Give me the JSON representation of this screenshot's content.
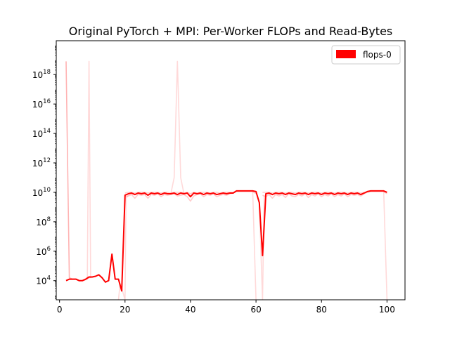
{
  "chart_data": {
    "type": "line",
    "title": "Original PyTorch + MPI: Per-Worker FLOPs and Read-Bytes",
    "xlabel": "",
    "ylabel": "",
    "xlim": [
      -1,
      105.5
    ],
    "ylim_log10": [
      2.7,
      20.3
    ],
    "yscale": "log",
    "x_ticks": [
      0,
      20,
      40,
      60,
      80,
      100
    ],
    "y_ticks": [
      {
        "base": "10",
        "exp": "4",
        "log10": 4
      },
      {
        "base": "10",
        "exp": "6",
        "log10": 6
      },
      {
        "base": "10",
        "exp": "8",
        "log10": 8
      },
      {
        "base": "10",
        "exp": "10",
        "log10": 10
      },
      {
        "base": "10",
        "exp": "12",
        "log10": 12
      },
      {
        "base": "10",
        "exp": "14",
        "log10": 14
      },
      {
        "base": "10",
        "exp": "16",
        "log10": 16
      },
      {
        "base": "10",
        "exp": "18",
        "log10": 18
      }
    ],
    "legend": {
      "placement": "top-right",
      "entries": [
        {
          "label": "flops-0",
          "color": "#ff0000"
        }
      ]
    },
    "grid": false,
    "line_color": "#ff0000",
    "series": [
      {
        "name": "flops-0",
        "opacity": 1.0,
        "points": [
          [
            2,
            4.0
          ],
          [
            3,
            4.1
          ],
          [
            4,
            4.1
          ],
          [
            5,
            4.1
          ],
          [
            6,
            4.0
          ],
          [
            7,
            4.0
          ],
          [
            8,
            4.1
          ],
          [
            9,
            4.25
          ],
          [
            10,
            4.25
          ],
          [
            11,
            4.3
          ],
          [
            12,
            4.4
          ],
          [
            13,
            4.2
          ],
          [
            14,
            3.9
          ],
          [
            15,
            4.0
          ],
          [
            16,
            5.8
          ],
          [
            17,
            4.1
          ],
          [
            18,
            4.1
          ],
          [
            19,
            3.3
          ],
          [
            20,
            9.8
          ],
          [
            21,
            9.9
          ],
          [
            22,
            9.95
          ],
          [
            23,
            9.85
          ],
          [
            24,
            9.95
          ],
          [
            25,
            9.9
          ],
          [
            26,
            9.95
          ],
          [
            27,
            9.8
          ],
          [
            28,
            9.95
          ],
          [
            29,
            9.9
          ],
          [
            30,
            9.95
          ],
          [
            31,
            9.85
          ],
          [
            32,
            9.95
          ],
          [
            33,
            9.9
          ],
          [
            34,
            9.9
          ],
          [
            35,
            9.95
          ],
          [
            36,
            9.85
          ],
          [
            37,
            9.95
          ],
          [
            38,
            9.9
          ],
          [
            39,
            9.95
          ],
          [
            40,
            9.7
          ],
          [
            41,
            9.95
          ],
          [
            42,
            9.9
          ],
          [
            43,
            9.95
          ],
          [
            44,
            9.85
          ],
          [
            45,
            9.95
          ],
          [
            46,
            9.9
          ],
          [
            47,
            9.95
          ],
          [
            48,
            9.85
          ],
          [
            49,
            9.9
          ],
          [
            50,
            9.95
          ],
          [
            51,
            9.9
          ],
          [
            52,
            9.95
          ],
          [
            53,
            9.95
          ],
          [
            54,
            10.1
          ],
          [
            55,
            10.1
          ],
          [
            56,
            10.1
          ],
          [
            57,
            10.1
          ],
          [
            58,
            10.1
          ],
          [
            59,
            10.1
          ],
          [
            60,
            10.05
          ],
          [
            61,
            9.3
          ],
          [
            62,
            5.7
          ],
          [
            63,
            9.9
          ],
          [
            64,
            9.95
          ],
          [
            65,
            9.85
          ],
          [
            66,
            9.95
          ],
          [
            67,
            9.9
          ],
          [
            68,
            9.95
          ],
          [
            69,
            9.85
          ],
          [
            70,
            9.95
          ],
          [
            71,
            9.9
          ],
          [
            72,
            9.85
          ],
          [
            73,
            9.95
          ],
          [
            74,
            9.9
          ],
          [
            75,
            9.95
          ],
          [
            76,
            9.85
          ],
          [
            77,
            9.95
          ],
          [
            78,
            9.9
          ],
          [
            79,
            9.95
          ],
          [
            80,
            9.85
          ],
          [
            81,
            9.95
          ],
          [
            82,
            9.9
          ],
          [
            83,
            9.95
          ],
          [
            84,
            9.85
          ],
          [
            85,
            9.95
          ],
          [
            86,
            9.9
          ],
          [
            87,
            9.95
          ],
          [
            88,
            9.85
          ],
          [
            89,
            9.95
          ],
          [
            90,
            9.9
          ],
          [
            91,
            9.95
          ],
          [
            92,
            9.85
          ],
          [
            93,
            9.95
          ],
          [
            94,
            10.05
          ],
          [
            95,
            10.1
          ],
          [
            96,
            10.1
          ],
          [
            97,
            10.1
          ],
          [
            98,
            10.1
          ],
          [
            99,
            10.1
          ],
          [
            100,
            10.0
          ]
        ]
      },
      {
        "name": "",
        "opacity": 0.3,
        "points": [
          [
            2,
            18.9
          ],
          [
            3,
            4.2
          ],
          [
            4,
            4.1
          ],
          [
            5,
            4.1
          ],
          [
            6,
            4.0
          ],
          [
            7,
            4.0
          ],
          [
            8,
            4.1
          ],
          [
            9,
            4.2
          ],
          [
            10,
            4.25
          ]
        ]
      },
      {
        "name": "",
        "opacity": 0.15,
        "points": [
          [
            7.5,
            4.0
          ],
          [
            8.5,
            4.1
          ],
          [
            9,
            18.9
          ],
          [
            9.5,
            4.2
          ],
          [
            10.5,
            4.25
          ]
        ]
      },
      {
        "name": "",
        "opacity": 0.15,
        "points": [
          [
            18,
            2.7
          ],
          [
            18.5,
            3.8
          ],
          [
            19,
            3.5
          ],
          [
            20,
            2.7
          ],
          [
            20.3,
            9.6
          ],
          [
            21,
            9.8
          ]
        ]
      },
      {
        "name": "",
        "opacity": 0.2,
        "points": [
          [
            20,
            9.7
          ],
          [
            21,
            9.75
          ],
          [
            22,
            9.85
          ],
          [
            23,
            9.6
          ],
          [
            24,
            9.85
          ],
          [
            25,
            9.8
          ],
          [
            26,
            9.85
          ],
          [
            27,
            9.6
          ],
          [
            28,
            9.85
          ],
          [
            29,
            9.8
          ],
          [
            30,
            9.9
          ],
          [
            31,
            9.7
          ],
          [
            32,
            9.85
          ],
          [
            33,
            9.8
          ],
          [
            34,
            9.85
          ],
          [
            35,
            9.9
          ],
          [
            36,
            9.75
          ],
          [
            37,
            9.8
          ],
          [
            38,
            9.85
          ],
          [
            39,
            9.7
          ],
          [
            40,
            9.4
          ],
          [
            41,
            9.75
          ],
          [
            42,
            9.85
          ],
          [
            43,
            9.9
          ],
          [
            44,
            9.7
          ],
          [
            45,
            9.85
          ],
          [
            46,
            9.8
          ],
          [
            47,
            9.9
          ],
          [
            48,
            9.7
          ],
          [
            49,
            9.8
          ],
          [
            50,
            9.85
          ],
          [
            51,
            9.8
          ],
          [
            52,
            9.9
          ],
          [
            53,
            9.95
          ],
          [
            54,
            10.05
          ],
          [
            55,
            10.05
          ],
          [
            56,
            10.05
          ],
          [
            57,
            10.05
          ],
          [
            58,
            10.05
          ],
          [
            59,
            10.05
          ],
          [
            60,
            9.9
          ]
        ]
      },
      {
        "name": "",
        "opacity": 0.2,
        "points": [
          [
            20,
            9.95
          ],
          [
            21,
            10.0
          ],
          [
            22,
            10.0
          ],
          [
            23,
            9.95
          ],
          [
            24,
            10.0
          ],
          [
            25,
            10.0
          ],
          [
            26,
            10.0
          ],
          [
            27,
            9.95
          ],
          [
            28,
            10.0
          ],
          [
            29,
            10.0
          ],
          [
            30,
            10.0
          ],
          [
            31,
            9.95
          ],
          [
            32,
            10.0
          ],
          [
            33,
            10.0
          ],
          [
            34,
            9.95
          ],
          [
            35,
            10.0
          ],
          [
            36,
            10.0
          ],
          [
            37,
            10.0
          ],
          [
            38,
            9.95
          ],
          [
            39,
            10.0
          ],
          [
            40,
            9.9
          ],
          [
            41,
            10.0
          ],
          [
            42,
            9.95
          ],
          [
            43,
            10.0
          ],
          [
            44,
            10.0
          ],
          [
            45,
            10.0
          ],
          [
            46,
            9.95
          ],
          [
            47,
            10.0
          ],
          [
            48,
            10.0
          ],
          [
            49,
            9.95
          ],
          [
            50,
            10.0
          ],
          [
            51,
            10.0
          ],
          [
            52,
            10.0
          ],
          [
            53,
            10.0
          ]
        ]
      },
      {
        "name": "",
        "opacity": 0.15,
        "points": [
          [
            34,
            9.9
          ],
          [
            35,
            11.0
          ],
          [
            36,
            18.9
          ],
          [
            37,
            11.0
          ],
          [
            38,
            9.9
          ]
        ]
      },
      {
        "name": "",
        "opacity": 0.15,
        "points": [
          [
            59,
            10.05
          ],
          [
            60,
            2.7
          ]
        ]
      },
      {
        "name": "",
        "opacity": 0.15,
        "points": [
          [
            61,
            9.2
          ],
          [
            62,
            2.7
          ],
          [
            62.5,
            9.8
          ]
        ]
      },
      {
        "name": "",
        "opacity": 0.2,
        "points": [
          [
            62,
            9.8
          ],
          [
            63,
            9.7
          ],
          [
            64,
            9.85
          ],
          [
            65,
            9.6
          ],
          [
            66,
            9.85
          ],
          [
            67,
            9.75
          ],
          [
            68,
            9.85
          ],
          [
            69,
            9.65
          ],
          [
            70,
            9.9
          ],
          [
            71,
            9.75
          ],
          [
            72,
            9.7
          ],
          [
            73,
            9.85
          ],
          [
            74,
            9.75
          ],
          [
            75,
            9.9
          ],
          [
            76,
            9.65
          ],
          [
            77,
            9.85
          ],
          [
            78,
            9.75
          ],
          [
            79,
            9.9
          ],
          [
            80,
            9.7
          ],
          [
            81,
            9.85
          ],
          [
            82,
            9.75
          ],
          [
            83,
            9.9
          ],
          [
            84,
            9.7
          ],
          [
            85,
            9.85
          ],
          [
            86,
            9.75
          ],
          [
            87,
            9.9
          ],
          [
            88,
            9.7
          ],
          [
            89,
            9.85
          ],
          [
            90,
            9.8
          ],
          [
            91,
            9.85
          ],
          [
            92,
            9.75
          ],
          [
            93,
            9.9
          ],
          [
            94,
            10.0
          ],
          [
            95,
            10.05
          ],
          [
            96,
            10.05
          ],
          [
            97,
            10.05
          ],
          [
            98,
            10.05
          ],
          [
            99,
            10.05
          ],
          [
            100,
            9.9
          ]
        ]
      },
      {
        "name": "",
        "opacity": 0.2,
        "points": [
          [
            62,
            10.0
          ],
          [
            63,
            10.0
          ],
          [
            64,
            10.0
          ],
          [
            65,
            9.95
          ],
          [
            66,
            10.0
          ],
          [
            67,
            10.0
          ],
          [
            68,
            10.0
          ],
          [
            69,
            9.95
          ],
          [
            70,
            10.0
          ],
          [
            71,
            10.0
          ],
          [
            72,
            9.95
          ],
          [
            73,
            10.0
          ],
          [
            74,
            10.0
          ],
          [
            75,
            10.0
          ],
          [
            76,
            9.95
          ],
          [
            77,
            10.0
          ],
          [
            78,
            10.0
          ],
          [
            79,
            10.0
          ],
          [
            80,
            9.95
          ],
          [
            81,
            10.0
          ],
          [
            82,
            10.0
          ],
          [
            83,
            10.0
          ],
          [
            84,
            9.95
          ],
          [
            85,
            10.0
          ],
          [
            86,
            10.0
          ],
          [
            87,
            10.0
          ],
          [
            88,
            9.95
          ],
          [
            89,
            10.0
          ],
          [
            90,
            10.0
          ],
          [
            91,
            10.0
          ],
          [
            92,
            9.95
          ],
          [
            93,
            10.0
          ]
        ]
      },
      {
        "name": "",
        "opacity": 0.15,
        "points": [
          [
            99,
            10.05
          ],
          [
            100,
            2.7
          ]
        ]
      }
    ]
  }
}
